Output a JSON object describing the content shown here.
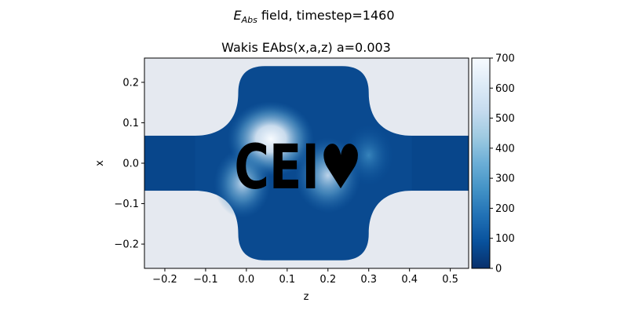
{
  "figure": {
    "suptitle_sym": "E",
    "suptitle_sub": "Abs",
    "suptitle_rest": " field, timestep=1460"
  },
  "chart_data": {
    "type": "heatmap",
    "title": "Wakis EAbs(x,a,z) a=0.003",
    "xlabel": "z",
    "ylabel": "x",
    "xlim": [
      -0.25,
      0.545
    ],
    "ylim": [
      -0.26,
      0.26
    ],
    "xticks": [
      -0.2,
      -0.1,
      0.0,
      0.1,
      0.2,
      0.3,
      0.4,
      0.5
    ],
    "xtick_labels": [
      "−0.2",
      "−0.1",
      "0.0",
      "0.1",
      "0.2",
      "0.3",
      "0.4",
      "0.5"
    ],
    "yticks": [
      0.2,
      0.1,
      0.0,
      -0.1,
      -0.2
    ],
    "ytick_labels": [
      "0.2",
      "0.1",
      "0.0",
      "−0.1",
      "−0.2"
    ],
    "colorbar": {
      "range": [
        0,
        700
      ],
      "ticks": [
        0,
        100,
        200,
        300,
        400,
        500,
        600,
        700
      ],
      "tick_labels": [
        "0",
        "100",
        "200",
        "300",
        "400",
        "500",
        "600",
        "700"
      ],
      "colormap": "Blues_r"
    },
    "masked_color": "#e5e9f0",
    "geometry": {
      "pipe_half_width": 0.068,
      "cavity_z_range": [
        -0.02,
        0.3
      ],
      "cavity_x_range": [
        -0.24,
        0.24
      ],
      "inscription": "CEI♥"
    },
    "field_hotspots": [
      {
        "z": 0.06,
        "x": 0.06,
        "value": 690
      },
      {
        "z": -0.01,
        "x": -0.05,
        "value": 640
      },
      {
        "z": 0.2,
        "x": -0.03,
        "value": 520
      },
      {
        "z": 0.3,
        "x": 0.02,
        "value": 300
      }
    ],
    "grid": false
  }
}
